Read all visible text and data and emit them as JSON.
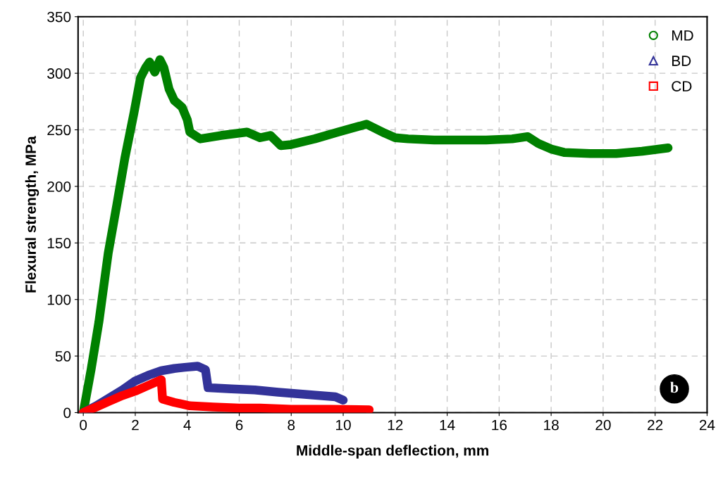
{
  "chart_data": {
    "type": "line",
    "xlabel": "Middle-span deflection, mm",
    "ylabel": "Flexural strength, MPa",
    "xlim": [
      -0.2,
      24
    ],
    "xticks": [
      0,
      2,
      4,
      6,
      8,
      10,
      12,
      14,
      16,
      18,
      20,
      22,
      24
    ],
    "ylim": [
      0,
      350
    ],
    "yticks": [
      0,
      50,
      100,
      150,
      200,
      250,
      300,
      350
    ],
    "grid": true,
    "legend": "top right",
    "annotations": [
      "b"
    ],
    "series": [
      {
        "name": "MD",
        "color": "#008000",
        "marker": "circle",
        "x": [
          0,
          0.3,
          0.6,
          0.96,
          1.3,
          1.6,
          1.95,
          2.2,
          2.4,
          2.55,
          2.75,
          2.95,
          3.1,
          3.3,
          3.5,
          3.8,
          4.0,
          4.1,
          4.5,
          5.3,
          6.3,
          6.8,
          7.2,
          7.6,
          8.0,
          8.9,
          9.8,
          10.9,
          11.6,
          12.0,
          12.5,
          13.5,
          14.5,
          15.5,
          16.5,
          17.1,
          17.5,
          18.0,
          18.5,
          19.5,
          20.5,
          21.5,
          22.5
        ],
        "values": [
          0,
          38,
          80,
          141,
          185,
          225,
          265,
          296,
          305,
          310,
          301,
          312,
          305,
          286,
          276,
          270,
          259,
          248,
          242,
          245,
          248,
          243,
          245,
          236,
          237,
          242,
          248,
          255,
          247,
          243,
          242,
          241,
          241,
          241,
          242,
          244,
          238,
          233,
          230,
          229,
          229,
          231,
          234
        ]
      },
      {
        "name": "BD",
        "color": "#333399",
        "marker": "triangle",
        "x": [
          0,
          0.5,
          1.0,
          1.5,
          2.0,
          2.5,
          3.0,
          3.5,
          3.9,
          4.4,
          4.7,
          4.8,
          5.7,
          6.6,
          7.5,
          8.6,
          9.7,
          10.0
        ],
        "values": [
          0,
          6,
          13,
          20,
          28,
          33,
          37,
          39,
          40,
          41,
          38,
          22,
          21,
          20,
          18,
          16,
          14,
          11
        ]
      },
      {
        "name": "CD",
        "color": "#ff0000",
        "marker": "square",
        "x": [
          0,
          0.5,
          1.0,
          1.5,
          2.0,
          2.5,
          3.0,
          3.05,
          3.5,
          4.1,
          5.0,
          6.0,
          6.8,
          8.0,
          9.5,
          11.0
        ],
        "values": [
          0,
          5,
          10,
          15,
          19,
          24,
          29,
          12,
          9,
          6,
          5,
          4,
          4,
          3,
          3,
          2.5
        ]
      }
    ]
  }
}
